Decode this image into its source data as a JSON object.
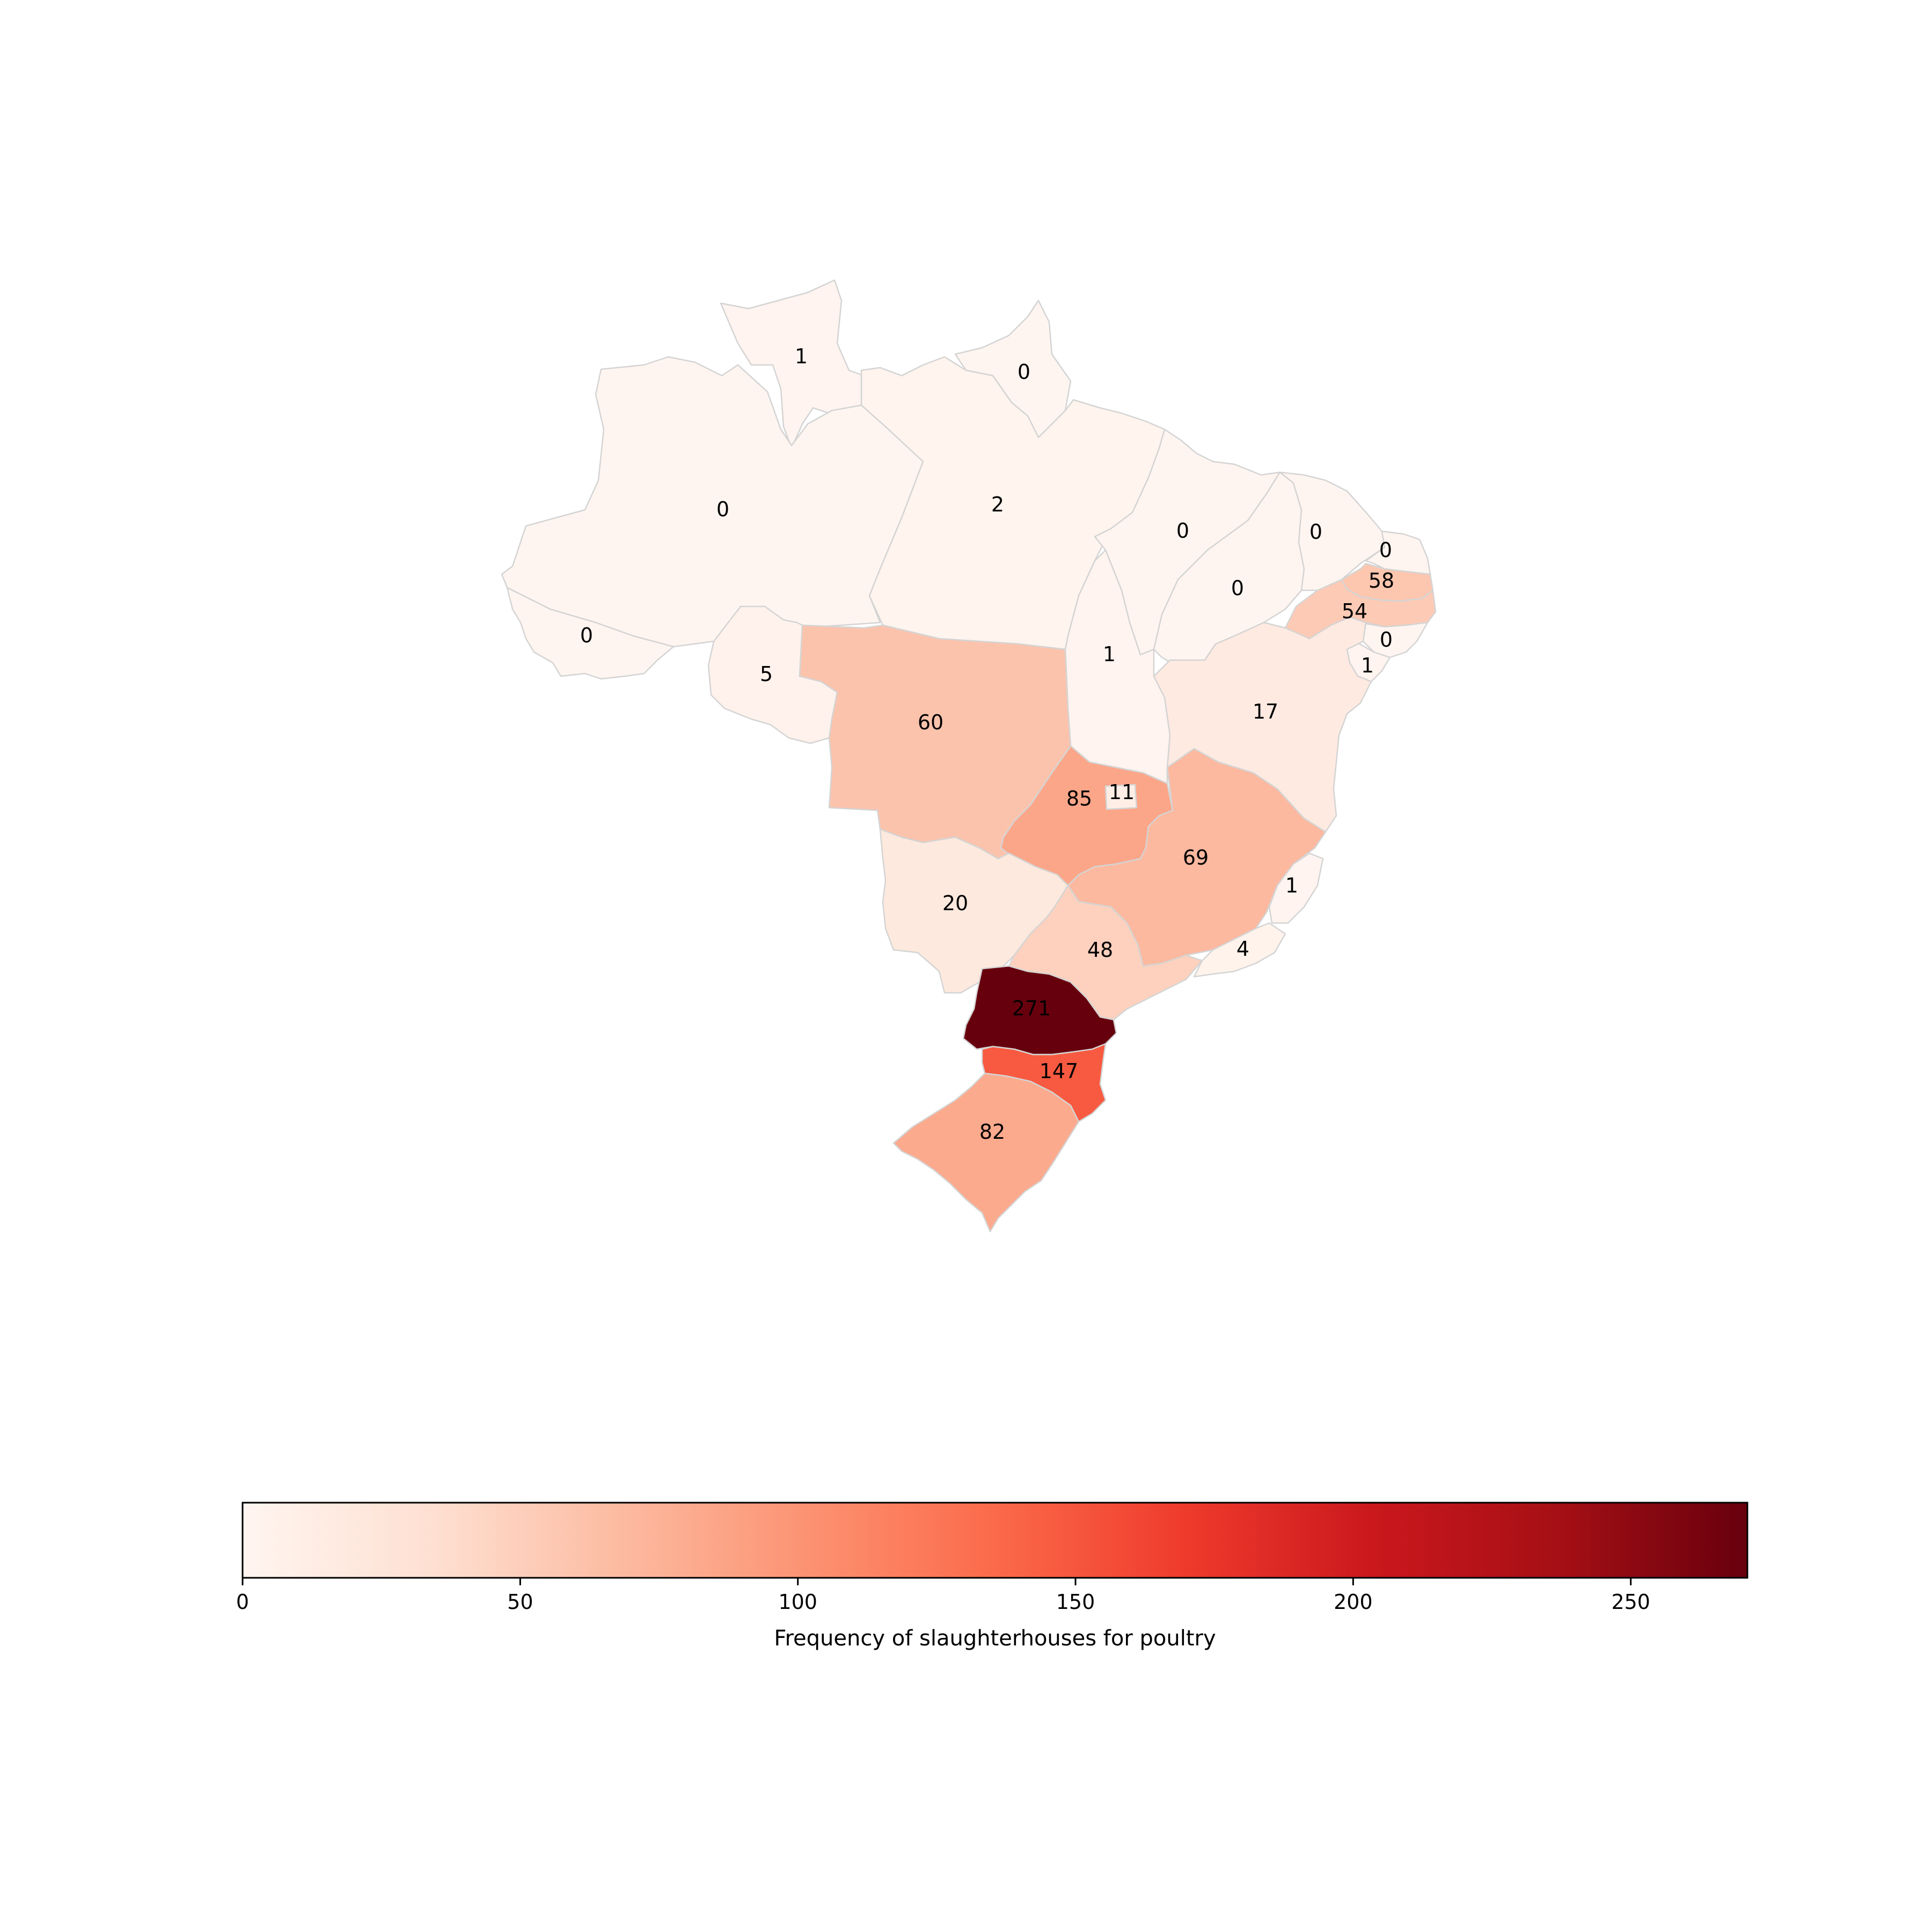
{
  "chart_data": {
    "type": "choropleth",
    "title": "",
    "region": "Brazil",
    "colormap": "Reds",
    "vmin": 0,
    "vmax": 271,
    "colorbar": {
      "label": "Frequency of slaughterhouses for poultry",
      "orientation": "horizontal",
      "placement": "bottom",
      "ticks": [
        0,
        50,
        100,
        150,
        200,
        250
      ],
      "tick_labels": [
        "0",
        "50",
        "100",
        "150",
        "200",
        "250"
      ]
    },
    "states": [
      {
        "id": "RR",
        "value": 1,
        "label": "1"
      },
      {
        "id": "AP",
        "value": 0,
        "label": "0"
      },
      {
        "id": "AM",
        "value": 0,
        "label": "0"
      },
      {
        "id": "PA",
        "value": 2,
        "label": "2"
      },
      {
        "id": "MA",
        "value": 0,
        "label": "0"
      },
      {
        "id": "PI",
        "value": 0,
        "label": "0"
      },
      {
        "id": "CE",
        "value": 0,
        "label": "0"
      },
      {
        "id": "RN",
        "value": 0,
        "label": "0"
      },
      {
        "id": "PB",
        "value": 58,
        "label": "58"
      },
      {
        "id": "PE",
        "value": 54,
        "label": "54"
      },
      {
        "id": "AL",
        "value": 0,
        "label": "0"
      },
      {
        "id": "SE",
        "value": 1,
        "label": "1"
      },
      {
        "id": "BA",
        "value": 17,
        "label": "17"
      },
      {
        "id": "AC",
        "value": 0,
        "label": "0"
      },
      {
        "id": "RO",
        "value": 5,
        "label": "5"
      },
      {
        "id": "TO",
        "value": 1,
        "label": "1"
      },
      {
        "id": "MT",
        "value": 60,
        "label": "60"
      },
      {
        "id": "GO",
        "value": 85,
        "label": "85"
      },
      {
        "id": "DF",
        "value": 11,
        "label": "11"
      },
      {
        "id": "MG",
        "value": 69,
        "label": "69"
      },
      {
        "id": "ES",
        "value": 1,
        "label": "1"
      },
      {
        "id": "MS",
        "value": 20,
        "label": "20"
      },
      {
        "id": "SP",
        "value": 48,
        "label": "48"
      },
      {
        "id": "RJ",
        "value": 4,
        "label": "4"
      },
      {
        "id": "PR",
        "value": 271,
        "label": "271"
      },
      {
        "id": "SC",
        "value": 147,
        "label": "147"
      },
      {
        "id": "RS",
        "value": 82,
        "label": "82"
      }
    ]
  }
}
